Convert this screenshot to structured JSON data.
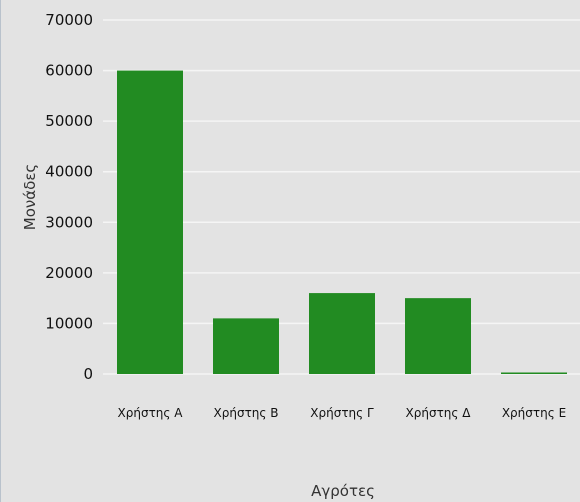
{
  "chart_data": {
    "type": "bar",
    "categories": [
      "Χρήστης Α",
      "Χρήστης Β",
      "Χρήστης Γ",
      "Χρήστης Δ",
      "Χρήστης Ε"
    ],
    "values": [
      60000,
      11000,
      16000,
      15000,
      300
    ],
    "title": "",
    "xlabel": "Αγρότες",
    "ylabel": "Μονάδες",
    "ylim": [
      0,
      70000
    ],
    "yticks": [
      "0",
      "10000",
      "20000",
      "30000",
      "40000",
      "50000",
      "60000",
      "70000"
    ],
    "grid": true,
    "bar_color": "#228b22",
    "background_color": "#e3e3e3",
    "grid_color": "#f5f5f5"
  }
}
